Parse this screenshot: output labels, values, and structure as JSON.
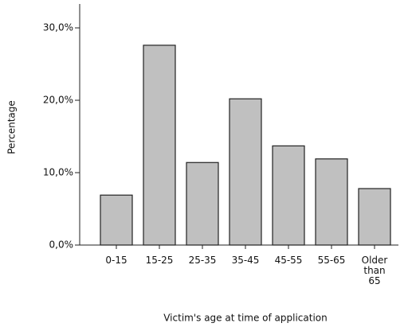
{
  "chart_data": {
    "type": "bar",
    "categories": [
      "0-15",
      "15-25",
      "25-35",
      "35-45",
      "45-55",
      "55-65",
      "Older than 65"
    ],
    "values": [
      6.9,
      27.6,
      11.4,
      20.2,
      13.7,
      11.9,
      7.8
    ],
    "color": "#c0c0c0",
    "ylim": [
      0,
      33.3
    ],
    "yticks": [
      {
        "value": 0,
        "label": "0,0%"
      },
      {
        "value": 10,
        "label": "10,0%"
      },
      {
        "value": 20,
        "label": "20,0%"
      },
      {
        "value": 30,
        "label": "30,0%"
      }
    ],
    "ylabel": "Percentage",
    "xlabel": "Victim's age at time of application",
    "grid": false
  }
}
